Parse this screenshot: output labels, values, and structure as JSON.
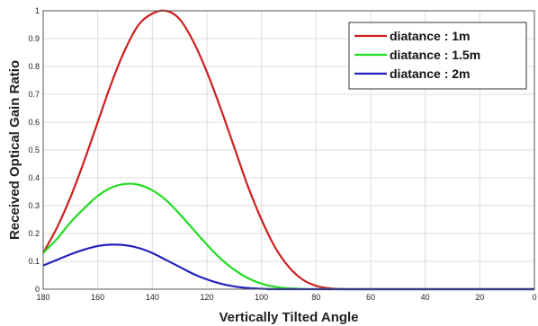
{
  "chart_data": {
    "type": "line",
    "title": "",
    "xlabel": "Vertically Tilted Angle",
    "ylabel": "Received Optical Gain Ratio",
    "xlim": [
      180,
      0
    ],
    "x_reversed": true,
    "ylim": [
      0,
      1
    ],
    "xticks": [
      "180",
      "160",
      "140",
      "120",
      "100",
      "80",
      "60",
      "40",
      "20",
      "0"
    ],
    "yticks": [
      "0",
      "0.1",
      "0.2",
      "0.3",
      "0.4",
      "0.5",
      "0.6",
      "0.7",
      "0.8",
      "0.9",
      "1"
    ],
    "grid": true,
    "legend_position": "top-right",
    "series": [
      {
        "name": "diatance : 1m",
        "color": "#cc1f1f",
        "x": [
          180,
          175,
          170,
          165,
          160,
          155,
          150,
          145,
          140,
          135,
          130,
          125,
          120,
          115,
          110,
          105,
          100,
          95,
          90,
          85,
          80,
          75,
          70,
          65,
          60,
          55,
          50,
          0
        ],
        "y": [
          0.13,
          0.22,
          0.33,
          0.46,
          0.6,
          0.74,
          0.86,
          0.95,
          0.99,
          1.0,
          0.97,
          0.89,
          0.78,
          0.65,
          0.51,
          0.37,
          0.25,
          0.15,
          0.08,
          0.035,
          0.012,
          0.003,
          0.0005,
          0.0,
          0.0,
          0.0,
          0.0,
          0.0
        ]
      },
      {
        "name": "diatance : 1.5m",
        "color": "#22dd22",
        "x": [
          180,
          175,
          170,
          165,
          160,
          155,
          150,
          145,
          140,
          135,
          130,
          125,
          120,
          115,
          110,
          105,
          100,
          95,
          90,
          85,
          80,
          75,
          70,
          0
        ],
        "y": [
          0.13,
          0.18,
          0.24,
          0.29,
          0.335,
          0.365,
          0.378,
          0.375,
          0.355,
          0.32,
          0.27,
          0.215,
          0.16,
          0.11,
          0.07,
          0.04,
          0.02,
          0.008,
          0.003,
          0.001,
          0.0,
          0.0,
          0.0,
          0.0
        ]
      },
      {
        "name": "diatance : 2m",
        "color": "#2222bb",
        "x": [
          180,
          175,
          170,
          165,
          160,
          155,
          150,
          145,
          140,
          135,
          130,
          125,
          120,
          115,
          110,
          105,
          100,
          95,
          90,
          0
        ],
        "y": [
          0.085,
          0.105,
          0.125,
          0.142,
          0.155,
          0.16,
          0.158,
          0.148,
          0.13,
          0.105,
          0.08,
          0.055,
          0.035,
          0.02,
          0.01,
          0.004,
          0.0015,
          0.0,
          0.0,
          0.0
        ]
      }
    ]
  }
}
